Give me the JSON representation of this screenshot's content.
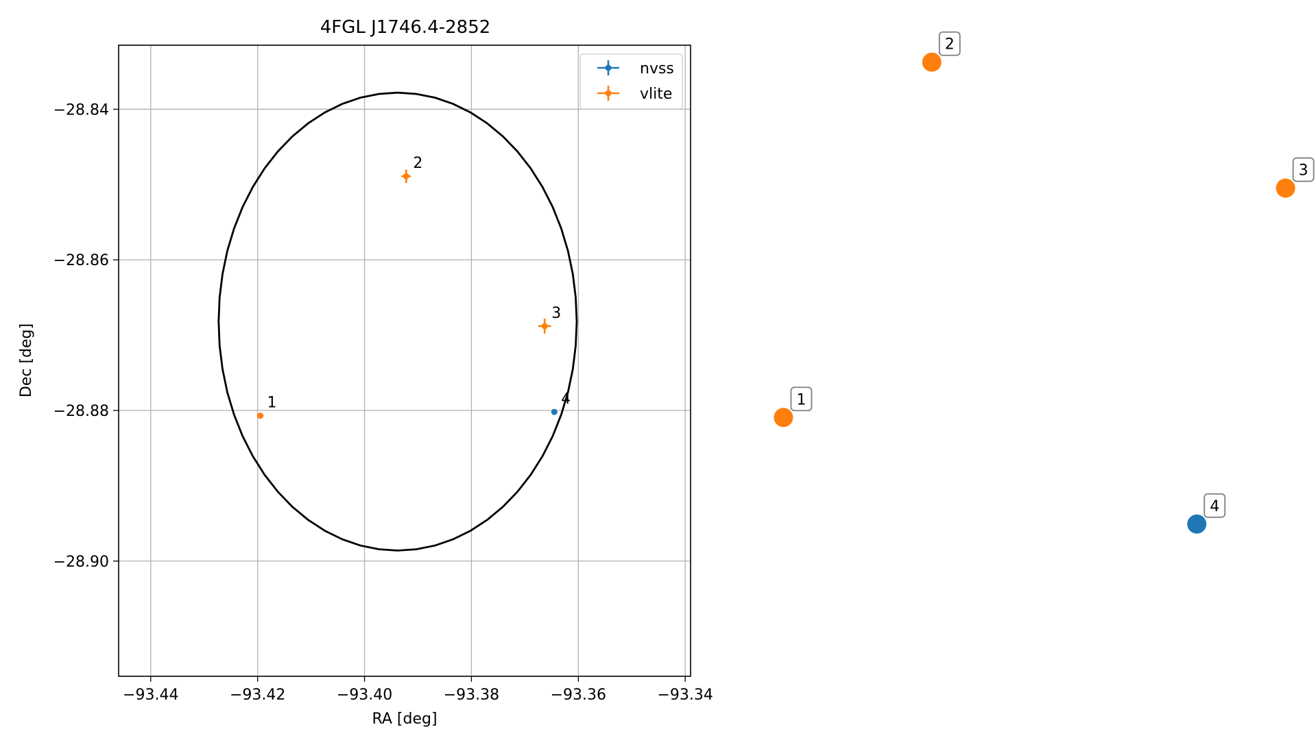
{
  "chart_data": [
    {
      "type": "scatter",
      "title": "4FGL J1746.4-2852",
      "xlabel": "RA [deg]",
      "ylabel": "Dec [deg]",
      "xlim": [
        -93.446,
        -93.339
      ],
      "ylim": [
        -28.9153,
        -28.8315
      ],
      "xticks": [
        -93.44,
        -93.42,
        -93.4,
        -93.38,
        -93.36,
        -93.34
      ],
      "xtick_labels": [
        "−93.44",
        "−93.42",
        "−93.40",
        "−93.38",
        "−93.36",
        "−93.34"
      ],
      "yticks": [
        -28.84,
        -28.86,
        -28.88,
        -28.9
      ],
      "ytick_labels": [
        "−28.84",
        "−28.86",
        "−28.88",
        "−28.90"
      ],
      "grid": true,
      "legend_position": "top-right",
      "series": [
        {
          "name": "nvss",
          "color": "#1f77b4",
          "points": [
            {
              "label": "4",
              "x": -93.3645,
              "y": -28.8802,
              "xerr": 0.0004,
              "yerr": 0.0003
            }
          ]
        },
        {
          "name": "vlite",
          "color": "#ff7f0e",
          "points": [
            {
              "label": "1",
              "x": -93.4195,
              "y": -28.8807,
              "xerr": 0.0006,
              "yerr": 0.0004
            },
            {
              "label": "2",
              "x": -93.3922,
              "y": -28.8489,
              "xerr": 0.0009,
              "yerr": 0.0009
            },
            {
              "label": "3",
              "x": -93.3663,
              "y": -28.8688,
              "xerr": 0.0012,
              "yerr": 0.001
            }
          ]
        }
      ],
      "ellipse": {
        "center": [
          -93.3938,
          -28.8682
        ],
        "semi_axis_ra": 0.0335,
        "semi_axis_dec": 0.0304,
        "color": "#000000"
      }
    },
    {
      "type": "scatter",
      "title": "",
      "axes_visible": false,
      "points": [
        {
          "label": "1",
          "color": "#ff7f0e",
          "x": 1,
          "y": 2.55
        },
        {
          "label": "2",
          "color": "#ff7f0e",
          "x": 2.17,
          "y": 5.85
        },
        {
          "label": "3",
          "color": "#ff7f0e",
          "x": 4.96,
          "y": 4.68
        },
        {
          "label": "4",
          "color": "#1f77b4",
          "x": 4.26,
          "y": 1.56
        }
      ],
      "xlim": [
        0.5,
        5.2
      ],
      "ylim": [
        0.0,
        6.3
      ]
    }
  ]
}
